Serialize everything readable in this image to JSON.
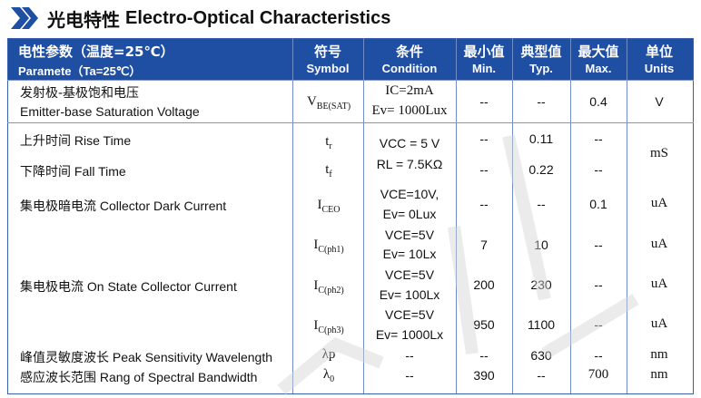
{
  "heading": {
    "cn": "光电特性",
    "en": "Electro-Optical Characteristics"
  },
  "header": {
    "param_cn": "电性参数（温度=25℃）",
    "param_en": "Paramete（Ta=25℃）",
    "symbol_cn": "符号",
    "symbol_en": "Symbol",
    "cond_cn": "条件",
    "cond_en": "Condition",
    "min_cn": "最小值",
    "min_en": "Min.",
    "typ_cn": "典型值",
    "typ_en": "Typ.",
    "max_cn": "最大值",
    "max_en": "Max.",
    "unit_cn": "单位",
    "unit_en": "Units"
  },
  "rows": {
    "r1": {
      "cn": "发射极-基极饱和电压",
      "en": "Emitter-base Saturation Voltage",
      "sym": "V",
      "sub": "BE(SAT)",
      "cond1": "IC=2mA",
      "cond2": "Ev= 1000Lux",
      "min": "--",
      "typ": "--",
      "max": "0.4",
      "unit": "V"
    },
    "r2": {
      "cn": "上升时间",
      "en": " Rise Time",
      "sym": "t",
      "sub": "r",
      "cond1": "VCC = 5 V",
      "min": "--",
      "typ": "0.11",
      "max": "--",
      "unit": "mS"
    },
    "r3": {
      "cn": "下降时间",
      "en": " Fall Time",
      "sym": "t",
      "sub": "f",
      "cond1": "RL = 7.5KΩ",
      "min": "--",
      "typ": "0.22",
      "max": "--"
    },
    "r4": {
      "cn": "集电极暗电流",
      "en": " Collector Dark Current",
      "sym": "I",
      "sub": "CEO",
      "cond1": "VCE=10V,",
      "cond2": "Ev= 0Lux",
      "min": "--",
      "typ": "--",
      "max": "0.1",
      "unit": "uA"
    },
    "r5": {
      "sym": "I",
      "sub": "C(ph1)",
      "cond1": "VCE=5V",
      "cond2": "Ev= 10Lx",
      "min": "7",
      "typ": "10",
      "max": "--",
      "unit": "uA"
    },
    "r6": {
      "cn": "集电极电流",
      "en": " On State Collector Current",
      "sym": "I",
      "sub": "C(ph2)",
      "cond1": "VCE=5V",
      "cond2": "Ev= 100Lx",
      "min": "200",
      "typ": "230",
      "max": "--",
      "unit": "uA"
    },
    "r7": {
      "sym": "I",
      "sub": "C(ph3)",
      "cond1": "VCE=5V",
      "cond2": "Ev= 1000Lx",
      "min": "950",
      "typ": "1100",
      "max": "--",
      "unit": "uA"
    },
    "r8": {
      "cn": "峰值灵敏度波长",
      "en": " Peak Sensitivity Wavelength",
      "sym": "λp",
      "cond1": "--",
      "min": "--",
      "typ": "630",
      "max": "--",
      "unit": "nm"
    },
    "r9": {
      "cn": "感应波长范围",
      "en": " Rang of Spectral Bandwidth",
      "sym": "λ",
      "sub": "0",
      "cond1": "--",
      "min": "390",
      "typ": "--",
      "max": "700",
      "unit": "nm"
    }
  },
  "colors": {
    "header_bg": "#1f4fa3",
    "accent": "#1f4fa3"
  }
}
